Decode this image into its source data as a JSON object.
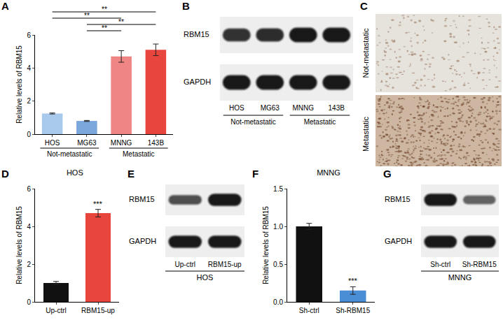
{
  "chart_data": [
    {
      "panel": "A",
      "type": "bar",
      "categories": [
        "HOS",
        "MG63",
        "MNNG",
        "143B"
      ],
      "values": [
        1.25,
        0.8,
        4.7,
        5.1
      ],
      "error": [
        0.03,
        0.03,
        0.35,
        0.35
      ],
      "colors": [
        "#a9c9ec",
        "#7aa6dc",
        "#ef8585",
        "#e8453c"
      ],
      "ylabel": "Relative levels of RBM15",
      "ylim": [
        0,
        6
      ],
      "yticks": [
        0,
        2,
        4,
        6
      ],
      "groups": [
        {
          "label": "Not-metastatic",
          "categories": [
            "HOS",
            "MG63"
          ]
        },
        {
          "label": "Metastatic",
          "categories": [
            "MNNG",
            "143B"
          ]
        }
      ],
      "comparisons": [
        {
          "between": [
            "HOS",
            "143B"
          ],
          "label": "**"
        },
        {
          "between": [
            "HOS",
            "MNNG"
          ],
          "label": "**"
        },
        {
          "between": [
            "MG63",
            "143B"
          ],
          "label": "**"
        },
        {
          "between": [
            "MG63",
            "MNNG"
          ],
          "label": "**"
        }
      ]
    },
    {
      "panel": "D",
      "type": "bar",
      "title": "HOS",
      "categories": [
        "Up-ctrl",
        "RBM15-up"
      ],
      "values": [
        1.0,
        4.7
      ],
      "error": [
        0.08,
        0.2
      ],
      "colors": [
        "#111111",
        "#e8453c"
      ],
      "ylabel": "Relative levels of RBM15",
      "ylim": [
        0,
        6
      ],
      "yticks": [
        0,
        2,
        4,
        6
      ],
      "annotations": [
        {
          "text": "***",
          "category": "RBM15-up"
        }
      ]
    },
    {
      "panel": "F",
      "type": "bar",
      "title": "MNNG",
      "categories": [
        "Sh-ctrl",
        "Sh-RBM15"
      ],
      "values": [
        1.0,
        0.15
      ],
      "error": [
        0.04,
        0.05
      ],
      "colors": [
        "#111111",
        "#4a8fd6"
      ],
      "ylabel": "Relative levels of RBM15",
      "ylim": [
        0,
        1.5
      ],
      "yticks": [
        {
          "value": 0,
          "label": "0.0"
        },
        {
          "value": 0.5,
          "label": "0.5"
        },
        {
          "value": 1,
          "label": "1.0"
        },
        {
          "value": 1.5,
          "label": "1.5"
        }
      ],
      "annotations": [
        {
          "text": "***",
          "category": "Sh-RBM15"
        }
      ]
    }
  ],
  "blots": [
    {
      "panel": "B",
      "rows": [
        {
          "label": "RBM15",
          "bands": [
            0.8,
            0.85,
            1,
            1
          ]
        },
        {
          "label": "GAPDH",
          "bands": [
            1,
            1,
            1,
            1
          ]
        }
      ],
      "lanes": [
        "HOS",
        "MG63",
        "MNNG",
        "143B"
      ],
      "groups": [
        {
          "label": "Not-metastatic",
          "lanes": [
            "HOS",
            "MG63"
          ]
        },
        {
          "label": "Metastatic",
          "lanes": [
            "MNNG",
            "143B"
          ]
        }
      ]
    },
    {
      "panel": "E",
      "rows": [
        {
          "label": "RBM15",
          "bands": [
            0.6,
            1
          ]
        },
        {
          "label": "GAPDH",
          "bands": [
            1,
            1
          ]
        }
      ],
      "lanes": [
        "Up-ctrl",
        "RBM15-up"
      ],
      "caption": "HOS"
    },
    {
      "panel": "G",
      "rows": [
        {
          "label": "RBM15",
          "bands": [
            1,
            0.45
          ]
        },
        {
          "label": "GAPDH",
          "bands": [
            1,
            1
          ]
        }
      ],
      "lanes": [
        "Sh-ctrl",
        "Sh-RBM15"
      ],
      "caption": "MNNG"
    }
  ],
  "images": {
    "panel": "C",
    "labels": [
      "Not-metastatic",
      "Metastatic"
    ]
  }
}
